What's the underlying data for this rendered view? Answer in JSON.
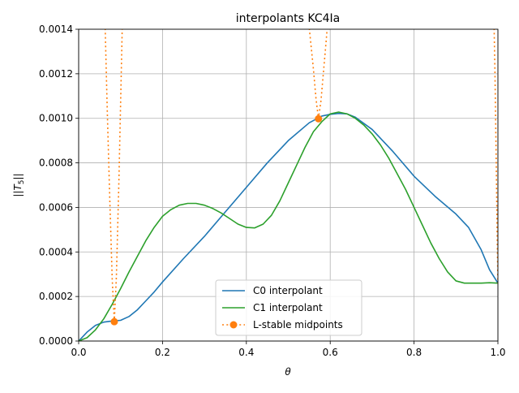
{
  "chart_data": {
    "type": "line",
    "title": "interpolants KC4Ia",
    "xlabel": "θ",
    "ylabel": "||T5||",
    "xlim": [
      0.0,
      1.0
    ],
    "ylim": [
      0.0,
      0.0014
    ],
    "xticks": [
      "0.0",
      "0.2",
      "0.4",
      "0.6",
      "0.8",
      "1.0"
    ],
    "yticks": [
      "0.0000",
      "0.0002",
      "0.0004",
      "0.0006",
      "0.0008",
      "0.0010",
      "0.0012",
      "0.0014"
    ],
    "grid": true,
    "legend_position": "bottom-center",
    "series": [
      {
        "name": "C0 interpolant",
        "color": "#1f77b4",
        "style": "solid",
        "x": [
          0.0,
          0.02,
          0.04,
          0.06,
          0.08,
          0.1,
          0.12,
          0.14,
          0.16,
          0.18,
          0.2,
          0.25,
          0.3,
          0.35,
          0.4,
          0.45,
          0.5,
          0.55,
          0.58,
          0.6,
          0.62,
          0.64,
          0.66,
          0.7,
          0.75,
          0.8,
          0.85,
          0.9,
          0.93,
          0.96,
          0.98,
          1.0
        ],
        "y": [
          0.0,
          4e-05,
          7e-05,
          8.5e-05,
          9e-05,
          9.3e-05,
          0.00011,
          0.00014,
          0.00018,
          0.00022,
          0.000265,
          0.00037,
          0.00047,
          0.00058,
          0.00069,
          0.0008,
          0.0009,
          0.00098,
          0.00101,
          0.001018,
          0.001022,
          0.00102,
          0.001005,
          0.00095,
          0.00085,
          0.00074,
          0.00065,
          0.00057,
          0.00051,
          0.00041,
          0.00032,
          0.00026
        ]
      },
      {
        "name": "C1 interpolant",
        "color": "#2ca02c",
        "style": "solid",
        "x": [
          0.0,
          0.02,
          0.04,
          0.06,
          0.08,
          0.1,
          0.12,
          0.14,
          0.16,
          0.18,
          0.2,
          0.22,
          0.24,
          0.26,
          0.28,
          0.3,
          0.32,
          0.34,
          0.36,
          0.38,
          0.4,
          0.42,
          0.44,
          0.46,
          0.48,
          0.5,
          0.52,
          0.54,
          0.56,
          0.58,
          0.6,
          0.62,
          0.64,
          0.66,
          0.68,
          0.7,
          0.72,
          0.74,
          0.76,
          0.78,
          0.8,
          0.82,
          0.84,
          0.86,
          0.88,
          0.9,
          0.92,
          0.94,
          0.96,
          0.98,
          1.0
        ],
        "y": [
          0.0,
          1.5e-05,
          5e-05,
          0.0001,
          0.000165,
          0.000235,
          0.00031,
          0.00038,
          0.00045,
          0.00051,
          0.00056,
          0.00059,
          0.00061,
          0.000618,
          0.000618,
          0.00061,
          0.000595,
          0.000575,
          0.00055,
          0.000525,
          0.00051,
          0.000508,
          0.000525,
          0.000565,
          0.00063,
          0.00071,
          0.00079,
          0.00087,
          0.00094,
          0.000985,
          0.00102,
          0.001028,
          0.00102,
          0.001,
          0.00097,
          0.00093,
          0.00088,
          0.00082,
          0.00075,
          0.00068,
          0.0006,
          0.00052,
          0.00044,
          0.00037,
          0.00031,
          0.00027,
          0.00026,
          0.00026,
          0.00026,
          0.000262,
          0.00026
        ]
      },
      {
        "name": "L-stable midpoints",
        "color": "#ff7f0e",
        "style": "dotted",
        "marker_x": [
          0.085,
          0.572
        ],
        "marker_y": [
          8.7e-05,
          0.000998
        ],
        "segments": [
          {
            "x": [
              0.062,
              0.068,
              0.074,
              0.08,
              0.085,
              0.09,
              0.096,
              0.101,
              0.105
            ],
            "y": [
              0.0015,
              0.00105,
              0.00065,
              0.00028,
              8.7e-05,
              0.00029,
              0.00072,
              0.00115,
              0.0015
            ]
          },
          {
            "x": [
              0.545,
              0.553,
              0.56,
              0.566,
              0.572,
              0.578,
              0.584,
              0.59,
              0.597
            ],
            "y": [
              0.0015,
              0.00135,
              0.00122,
              0.00109,
              0.000998,
              0.00108,
              0.00121,
              0.00134,
              0.0015
            ]
          },
          {
            "x": [
              0.99,
              0.993,
              0.996,
              0.998,
              1.0
            ],
            "y": [
              0.0015,
              0.0012,
              0.0008,
              0.0005,
              0.00026
            ]
          }
        ]
      }
    ]
  }
}
